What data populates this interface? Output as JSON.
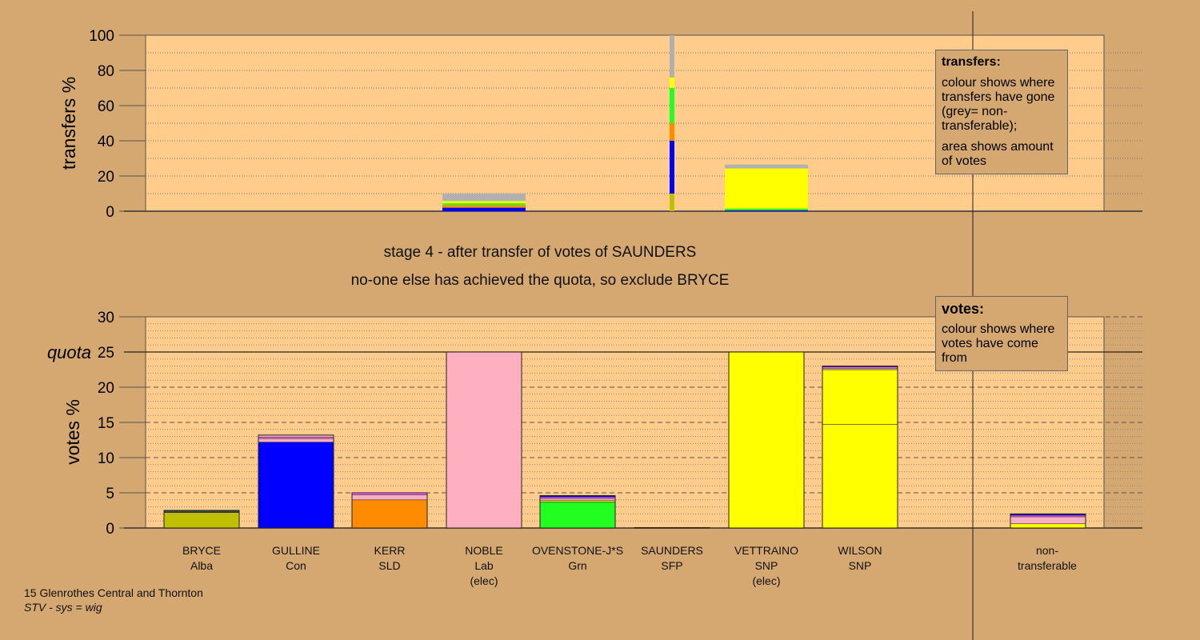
{
  "chart_data": [
    {
      "type": "bar",
      "stacked": true,
      "ylabel": "transfers %",
      "ylim": [
        0,
        100
      ],
      "yticks": [
        0,
        20,
        40,
        60,
        80,
        100
      ],
      "grid": true,
      "bars": [
        {
          "category": "NOBLE",
          "style": "wide",
          "total": 10.0,
          "segments": [
            {
              "color": "#0000ff",
              "value": 2.0
            },
            {
              "color": "#ff8c00",
              "value": 1.5
            },
            {
              "color": "#20ff20",
              "value": 1.0
            },
            {
              "color": "#ffff00",
              "value": 1.3
            },
            {
              "color": "#b0b0b0",
              "value": 4.2
            }
          ]
        },
        {
          "category": "SAUNDERS",
          "style": "thin",
          "total": 100,
          "segments": [
            {
              "color": "#c0c000",
              "value": 10
            },
            {
              "color": "#0000ff",
              "value": 30
            },
            {
              "color": "#ff8c00",
              "value": 10
            },
            {
              "color": "#20ff20",
              "value": 20
            },
            {
              "color": "#ffff00",
              "value": 6
            },
            {
              "color": "#b0b0b0",
              "value": 24
            }
          ]
        },
        {
          "category": "VETTRAINO",
          "style": "wide",
          "total": 26.5,
          "segments": [
            {
              "color": "#0000ff",
              "value": 0.5
            },
            {
              "color": "#20ff20",
              "value": 1.0
            },
            {
              "color": "#ffff00",
              "value": 22.8
            },
            {
              "color": "#b0b0b0",
              "value": 2.2
            }
          ]
        }
      ]
    },
    {
      "type": "bar",
      "stacked": true,
      "ylabel": "votes %",
      "ylim": [
        0,
        30
      ],
      "yticks": [
        0,
        5,
        10,
        15,
        20,
        25,
        30
      ],
      "quota": 25,
      "quota_label": "quota",
      "grid": true,
      "categories": [
        "BRYCE",
        "GULLINE",
        "KERR",
        "NOBLE",
        "OVENSTONE-J*S",
        "SAUNDERS",
        "VETTRAINO",
        "WILSON",
        "non-transferable"
      ],
      "bars": [
        {
          "category": "BRYCE",
          "segments": [
            {
              "color": "#c0c000",
              "value": 2.2
            },
            {
              "color": "#0000ff",
              "value": 0.1
            },
            {
              "color": "#20ff20",
              "value": 0.1
            },
            {
              "color": "#ffb0c0",
              "value": 0.1
            }
          ]
        },
        {
          "category": "GULLINE",
          "segments": [
            {
              "color": "#0000ff",
              "value": 12.2
            },
            {
              "color": "#ffb0c0",
              "value": 0.5
            },
            {
              "color": "#ff60ff",
              "value": 0.2
            },
            {
              "color": "#ffb0c0",
              "value": 0.3
            }
          ]
        },
        {
          "category": "KERR",
          "segments": [
            {
              "color": "#ff8c00",
              "value": 4.0
            },
            {
              "color": "#ffb0c0",
              "value": 0.7
            },
            {
              "color": "#ff60ff",
              "value": 0.3
            }
          ]
        },
        {
          "category": "NOBLE",
          "segments": [
            {
              "color": "#ffb0c0",
              "value": 25.0
            }
          ]
        },
        {
          "category": "OVENSTONE-J*S",
          "segments": [
            {
              "color": "#20ff20",
              "value": 3.7
            },
            {
              "color": "#ffff00",
              "value": 0.2
            },
            {
              "color": "#ffb0c0",
              "value": 0.3
            },
            {
              "color": "#ff60ff",
              "value": 0.2
            },
            {
              "color": "#0000ff",
              "value": 0.2
            }
          ]
        },
        {
          "category": "SAUNDERS",
          "segments": [
            {
              "color": "#000000",
              "value": 0.06
            }
          ]
        },
        {
          "category": "VETTRAINO",
          "segments": [
            {
              "color": "#ffff00",
              "value": 25.0
            }
          ]
        },
        {
          "category": "WILSON",
          "segments": [
            {
              "color": "#ffff00",
              "value": 14.7
            },
            {
              "color": "#ffff00",
              "value": 7.8
            },
            {
              "color": "#ffb0c0",
              "value": 0.2
            },
            {
              "color": "#ff60ff",
              "value": 0.2
            },
            {
              "color": "#0000ff",
              "value": 0.1
            }
          ]
        },
        {
          "category": "non-transferable",
          "segments": [
            {
              "color": "#ffff00",
              "value": 0.6
            },
            {
              "color": "#ffb0c0",
              "value": 1.0
            },
            {
              "color": "#ff60ff",
              "value": 0.2
            },
            {
              "color": "#0000ff",
              "value": 0.2
            }
          ]
        }
      ]
    }
  ],
  "stage_line1": "stage 4 - after transfer of votes of SAUNDERS",
  "stage_line2": "no-one else has achieved the quota, so exclude BRYCE",
  "transfers_box": {
    "heading": "transfers:",
    "line1": "colour shows where transfers have gone (grey= non-transferable);",
    "line2": "area shows amount of votes"
  },
  "votes_box": {
    "heading": "votes:",
    "line1": "colour shows where votes have come from"
  },
  "candidates": [
    {
      "name": "BRYCE",
      "party": "Alba",
      "note": ""
    },
    {
      "name": "GULLINE",
      "party": "Con",
      "note": ""
    },
    {
      "name": "KERR",
      "party": "SLD",
      "note": ""
    },
    {
      "name": "NOBLE",
      "party": "Lab",
      "note": "(elec)"
    },
    {
      "name": "OVENSTONE-J*S",
      "party": "Grn",
      "note": ""
    },
    {
      "name": "SAUNDERS",
      "party": "SFP",
      "note": ""
    },
    {
      "name": "VETTRAINO",
      "party": "SNP",
      "note": "(elec)"
    },
    {
      "name": "WILSON",
      "party": "SNP",
      "note": ""
    }
  ],
  "nontransferable_label": {
    "line1": "non-",
    "line2": "transferable"
  },
  "footer": {
    "ward": "15 Glenrothes Central and Thornton",
    "system": "STV - sys = wig"
  }
}
